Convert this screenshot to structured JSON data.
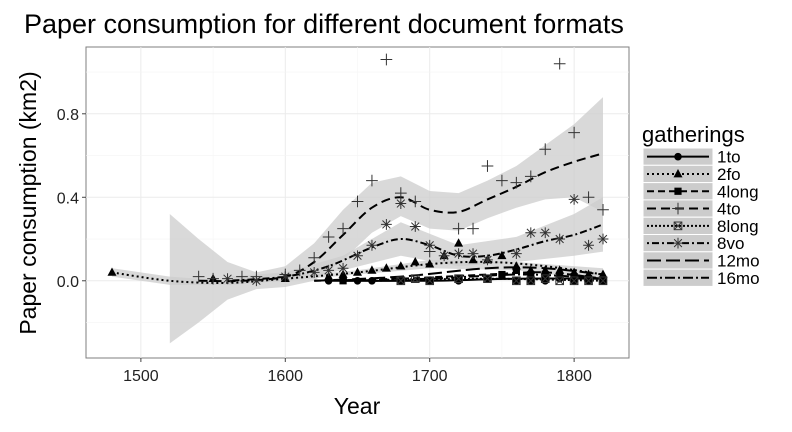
{
  "chart_data": {
    "type": "scatter",
    "title": "Paper consumption for different document formats",
    "xlabel": "Year",
    "ylabel": "Paper consumption (km2)",
    "xlim": [
      1462,
      1838
    ],
    "ylim": [
      -0.37,
      1.12
    ],
    "x_ticks": [
      1500,
      1600,
      1700,
      1800
    ],
    "y_ticks": [
      0.0,
      0.4,
      0.8
    ],
    "x_tick_labels": [
      "1500",
      "1600",
      "1700",
      "1800"
    ],
    "y_tick_labels": [
      "0.0",
      "0.4",
      "0.8"
    ],
    "grid": true,
    "legend_position": "right",
    "legend_title": "gatherings",
    "series": [
      {
        "name": "1to",
        "marker": "circle",
        "dash": "",
        "points": [
          [
            1630,
            0.0
          ],
          [
            1640,
            0.01
          ],
          [
            1650,
            0.0
          ],
          [
            1660,
            0.0
          ],
          [
            1680,
            0.0
          ],
          [
            1700,
            0.0
          ],
          [
            1720,
            0.0
          ],
          [
            1740,
            0.01
          ],
          [
            1760,
            0.0
          ],
          [
            1770,
            0.0
          ],
          [
            1780,
            0.0
          ],
          [
            1790,
            0.01
          ],
          [
            1800,
            0.0
          ],
          [
            1810,
            0.0
          ],
          [
            1820,
            0.0
          ]
        ],
        "trend": [
          [
            1630,
            0.0
          ],
          [
            1700,
            0.0
          ],
          [
            1760,
            0.01
          ],
          [
            1820,
            0.01
          ]
        ]
      },
      {
        "name": "2fo",
        "marker": "triangle",
        "dash": "2 3",
        "points": [
          [
            1480,
            0.04
          ],
          [
            1550,
            0.01
          ],
          [
            1600,
            0.01
          ],
          [
            1630,
            0.02
          ],
          [
            1640,
            0.03
          ],
          [
            1650,
            0.04
          ],
          [
            1660,
            0.05
          ],
          [
            1670,
            0.06
          ],
          [
            1680,
            0.07
          ],
          [
            1690,
            0.09
          ],
          [
            1700,
            0.08
          ],
          [
            1710,
            0.12
          ],
          [
            1720,
            0.18
          ],
          [
            1730,
            0.1
          ],
          [
            1740,
            0.1
          ],
          [
            1750,
            0.12
          ],
          [
            1760,
            0.07
          ],
          [
            1770,
            0.05
          ],
          [
            1780,
            0.05
          ],
          [
            1790,
            0.05
          ],
          [
            1800,
            0.04
          ],
          [
            1810,
            0.03
          ],
          [
            1820,
            0.03
          ]
        ],
        "trend": [
          [
            1480,
            0.04
          ],
          [
            1520,
            0.0
          ],
          [
            1560,
            -0.01
          ],
          [
            1600,
            0.01
          ],
          [
            1650,
            0.04
          ],
          [
            1700,
            0.08
          ],
          [
            1740,
            0.09
          ],
          [
            1780,
            0.07
          ],
          [
            1820,
            0.03
          ]
        ]
      },
      {
        "name": "4long",
        "marker": "square",
        "dash": "7 4",
        "points": [
          [
            1640,
            0.0
          ],
          [
            1700,
            0.0
          ],
          [
            1720,
            0.01
          ],
          [
            1750,
            0.03
          ],
          [
            1760,
            0.05
          ],
          [
            1770,
            0.03
          ],
          [
            1780,
            0.03
          ],
          [
            1790,
            0.02
          ],
          [
            1800,
            0.02
          ],
          [
            1810,
            0.01
          ],
          [
            1820,
            0.0
          ]
        ],
        "trend": [
          [
            1620,
            0.0
          ],
          [
            1680,
            0.01
          ],
          [
            1740,
            0.03
          ],
          [
            1780,
            0.04
          ],
          [
            1820,
            0.01
          ]
        ]
      },
      {
        "name": "4to",
        "marker": "plus",
        "dash": "9 5",
        "points": [
          [
            1540,
            0.02
          ],
          [
            1550,
            0.01
          ],
          [
            1570,
            0.02
          ],
          [
            1580,
            0.02
          ],
          [
            1600,
            0.03
          ],
          [
            1610,
            0.05
          ],
          [
            1620,
            0.11
          ],
          [
            1630,
            0.21
          ],
          [
            1640,
            0.25
          ],
          [
            1650,
            0.38
          ],
          [
            1660,
            0.48
          ],
          [
            1670,
            1.06
          ],
          [
            1680,
            0.42
          ],
          [
            1690,
            0.38
          ],
          [
            1700,
            0.14
          ],
          [
            1720,
            0.25
          ],
          [
            1730,
            0.25
          ],
          [
            1740,
            0.55
          ],
          [
            1750,
            0.48
          ],
          [
            1760,
            0.47
          ],
          [
            1770,
            0.5
          ],
          [
            1780,
            0.63
          ],
          [
            1790,
            1.04
          ],
          [
            1800,
            0.71
          ],
          [
            1810,
            0.4
          ],
          [
            1820,
            0.34
          ]
        ],
        "trend": [
          [
            1540,
            0.0
          ],
          [
            1570,
            0.0
          ],
          [
            1600,
            0.02
          ],
          [
            1620,
            0.09
          ],
          [
            1640,
            0.22
          ],
          [
            1660,
            0.35
          ],
          [
            1680,
            0.4
          ],
          [
            1700,
            0.34
          ],
          [
            1720,
            0.33
          ],
          [
            1740,
            0.39
          ],
          [
            1760,
            0.45
          ],
          [
            1780,
            0.52
          ],
          [
            1800,
            0.57
          ],
          [
            1820,
            0.61
          ]
        ]
      },
      {
        "name": "8long",
        "marker": "boxx",
        "dash": "2 2",
        "points": [
          [
            1680,
            0.0
          ],
          [
            1690,
            0.01
          ],
          [
            1700,
            0.0
          ],
          [
            1720,
            0.01
          ],
          [
            1740,
            0.01
          ],
          [
            1760,
            0.0
          ],
          [
            1770,
            0.0
          ],
          [
            1780,
            0.01
          ],
          [
            1790,
            0.0
          ],
          [
            1800,
            0.0
          ],
          [
            1810,
            0.0
          ],
          [
            1820,
            0.0
          ]
        ],
        "trend": [
          [
            1660,
            0.0
          ],
          [
            1740,
            0.01
          ],
          [
            1820,
            0.0
          ]
        ]
      },
      {
        "name": "8vo",
        "marker": "star",
        "dash": "2 3 7 3",
        "points": [
          [
            1560,
            0.01
          ],
          [
            1580,
            0.0
          ],
          [
            1600,
            0.02
          ],
          [
            1620,
            0.04
          ],
          [
            1630,
            0.05
          ],
          [
            1640,
            0.06
          ],
          [
            1650,
            0.12
          ],
          [
            1660,
            0.17
          ],
          [
            1670,
            0.27
          ],
          [
            1680,
            0.37
          ],
          [
            1690,
            0.26
          ],
          [
            1700,
            0.17
          ],
          [
            1710,
            0.12
          ],
          [
            1720,
            0.13
          ],
          [
            1730,
            0.13
          ],
          [
            1740,
            0.1
          ],
          [
            1760,
            0.13
          ],
          [
            1770,
            0.23
          ],
          [
            1780,
            0.23
          ],
          [
            1790,
            0.2
          ],
          [
            1800,
            0.39
          ],
          [
            1810,
            0.17
          ],
          [
            1820,
            0.2
          ]
        ],
        "trend": [
          [
            1560,
            0.0
          ],
          [
            1600,
            0.02
          ],
          [
            1630,
            0.07
          ],
          [
            1660,
            0.16
          ],
          [
            1680,
            0.2
          ],
          [
            1700,
            0.17
          ],
          [
            1720,
            0.12
          ],
          [
            1740,
            0.12
          ],
          [
            1760,
            0.15
          ],
          [
            1780,
            0.19
          ],
          [
            1800,
            0.22
          ],
          [
            1820,
            0.27
          ]
        ]
      },
      {
        "name": "12mo",
        "marker": "none",
        "dash": "14 5",
        "points": [],
        "trend": [
          [
            1620,
            0.0
          ],
          [
            1680,
            0.02
          ],
          [
            1740,
            0.06
          ],
          [
            1780,
            0.06
          ],
          [
            1820,
            0.03
          ]
        ]
      },
      {
        "name": "16mo",
        "marker": "none",
        "dash": "10 3 2 3",
        "points": [],
        "trend": [
          [
            1640,
            0.0
          ],
          [
            1700,
            0.01
          ],
          [
            1760,
            0.03
          ],
          [
            1800,
            0.02
          ],
          [
            1820,
            0.01
          ]
        ]
      }
    ],
    "confidence_bands": [
      {
        "series": "2fo",
        "x": [
          1480,
          1520,
          1540,
          1560,
          1600,
          1650,
          1700,
          1760,
          1820
        ],
        "lower": [
          0.02,
          -0.02,
          -0.02,
          -0.02,
          0.0,
          0.03,
          0.06,
          0.05,
          0.0
        ],
        "upper": [
          0.06,
          0.02,
          0.01,
          0.0,
          0.02,
          0.05,
          0.1,
          0.09,
          0.06
        ]
      },
      {
        "series": "4to",
        "x": [
          1520,
          1540,
          1560,
          1580,
          1600,
          1620,
          1640,
          1660,
          1680,
          1700,
          1720,
          1740,
          1760,
          1780,
          1800,
          1820
        ],
        "lower": [
          -0.3,
          -0.2,
          -0.09,
          -0.04,
          -0.03,
          0.0,
          0.1,
          0.23,
          0.31,
          0.25,
          0.24,
          0.3,
          0.35,
          0.39,
          0.4,
          0.33
        ],
        "upper": [
          0.32,
          0.2,
          0.09,
          0.04,
          0.07,
          0.18,
          0.34,
          0.47,
          0.5,
          0.43,
          0.42,
          0.48,
          0.55,
          0.65,
          0.75,
          0.88
        ]
      },
      {
        "series": "8vo",
        "x": [
          1560,
          1600,
          1640,
          1680,
          1720,
          1760,
          1800,
          1820
        ],
        "lower": [
          -0.02,
          0.0,
          0.05,
          0.12,
          0.07,
          0.09,
          0.12,
          0.14
        ],
        "upper": [
          0.02,
          0.04,
          0.12,
          0.28,
          0.17,
          0.21,
          0.32,
          0.4
        ]
      }
    ]
  }
}
